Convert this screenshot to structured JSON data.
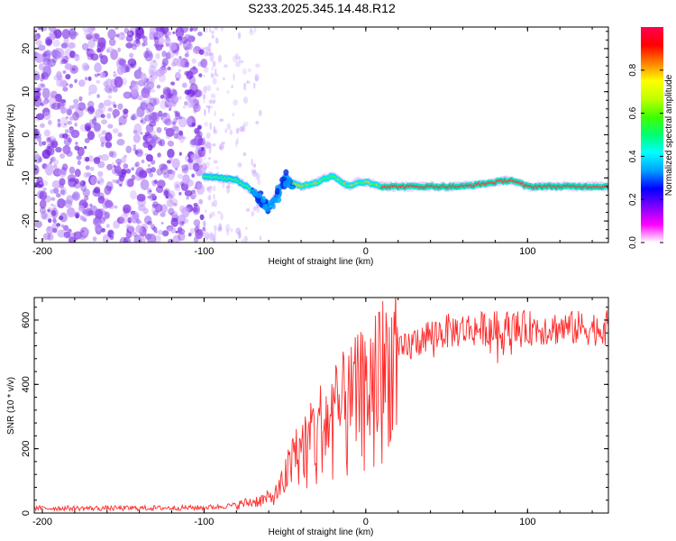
{
  "title": "S233.2025.345.14.48.R12",
  "chart_data": [
    {
      "type": "heatmap",
      "xlabel": "Height of straight line (km)",
      "ylabel": "Frequency (Hz)",
      "xlim": [
        -205,
        150
      ],
      "ylim": [
        -25,
        25
      ],
      "xticks": [
        -200,
        -100,
        0,
        100
      ],
      "yticks": [
        -20,
        -10,
        0,
        10,
        20
      ],
      "colorbar": {
        "label": "Normalized spectral amplitude",
        "range": [
          0,
          1
        ],
        "ticks": [
          0.0,
          0.2,
          0.4,
          0.6,
          0.8
        ],
        "tick_labels": [
          "0.0",
          "0.2",
          "0.4",
          "0.6",
          "0.8"
        ],
        "colors": [
          "#ffffff",
          "#ff00ff",
          "#7f00ff",
          "#0000ff",
          "#00a0ff",
          "#00ffff",
          "#00ff70",
          "#40ff00",
          "#c0ff00",
          "#ffff00",
          "#ff8000",
          "#ff0000",
          "#ff0050"
        ]
      },
      "description_series": [
        {
          "name": "noise",
          "x_range": [
            -205,
            -100
          ],
          "y_range": [
            -25,
            25
          ],
          "level": 0.15
        },
        {
          "name": "sparse noise",
          "x_range": [
            -100,
            -65
          ],
          "y_range": [
            -25,
            25
          ],
          "level": 0.05
        },
        {
          "name": "signal track",
          "x": [
            -100,
            -90,
            -80,
            -70,
            -65,
            -60,
            -55,
            -50,
            -45,
            -40,
            -35,
            -30,
            -25,
            -20,
            -15,
            -10,
            -5,
            0,
            10,
            20,
            40,
            60,
            80,
            90,
            100,
            120,
            150
          ],
          "y": [
            -9.5,
            -10,
            -10.5,
            -13,
            -15,
            -17,
            -14,
            -10,
            -11,
            -12,
            -11.5,
            -11,
            -10,
            -9.5,
            -11,
            -12,
            -11,
            -11,
            -12,
            -12,
            -12,
            -12,
            -11,
            -10.5,
            -12,
            -12,
            -12
          ]
        }
      ]
    },
    {
      "type": "line",
      "xlabel": "Height of straight line (km)",
      "ylabel": "SNR (10 * v/v)",
      "xlim": [
        -205,
        150
      ],
      "ylim": [
        0,
        670
      ],
      "xticks": [
        -200,
        -100,
        0,
        100
      ],
      "yticks": [
        0,
        200,
        400,
        600
      ],
      "series": [
        {
          "name": "SNR",
          "color": "#ff2a2a",
          "x": [
            -205,
            -180,
            -150,
            -120,
            -100,
            -90,
            -80,
            -70,
            -65,
            -60,
            -55,
            -50,
            -45,
            -40,
            -35,
            -30,
            -25,
            -20,
            -15,
            -10,
            -5,
            0,
            5,
            10,
            15,
            20,
            25,
            30,
            35,
            40,
            50,
            60,
            80,
            100,
            120,
            150
          ],
          "y": [
            15,
            15,
            15,
            16,
            17,
            20,
            25,
            35,
            40,
            45,
            60,
            110,
            160,
            200,
            230,
            260,
            280,
            300,
            320,
            340,
            360,
            380,
            410,
            440,
            460,
            490,
            510,
            530,
            545,
            555,
            565,
            570,
            575,
            575,
            575,
            575
          ]
        }
      ]
    }
  ]
}
